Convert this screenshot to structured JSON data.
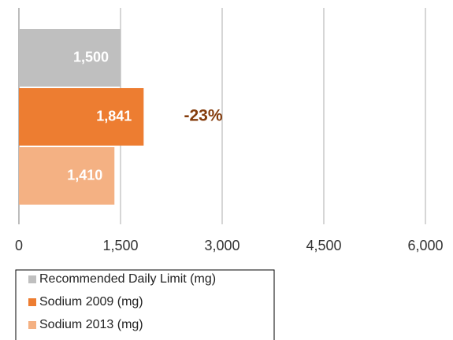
{
  "chart_data": {
    "type": "bar",
    "orientation": "horizontal",
    "categories": [
      null
    ],
    "series": [
      {
        "name": "Recommended Daily Limit (mg)",
        "color": "#bfbfbf",
        "values": [
          1500
        ],
        "value_labels": [
          "1,500"
        ]
      },
      {
        "name": "Sodium 2009 (mg)",
        "color": "#ed7d31",
        "values": [
          1841
        ],
        "value_labels": [
          "1,841"
        ]
      },
      {
        "name": "Sodium 2013 (mg)",
        "color": "#f4b183",
        "values": [
          1410
        ],
        "value_labels": [
          "1,410"
        ]
      }
    ],
    "annotations": [
      "-23%"
    ],
    "xlim": [
      0,
      6000
    ],
    "xticks": [
      0,
      {
        "value": 1500,
        "label": "1,500"
      },
      {
        "value": 3000,
        "label": "3,000"
      },
      {
        "value": 4500,
        "label": "4,500"
      },
      {
        "value": 6000,
        "label": "6,000"
      }
    ],
    "grid": true,
    "legend": "bottom-left"
  }
}
